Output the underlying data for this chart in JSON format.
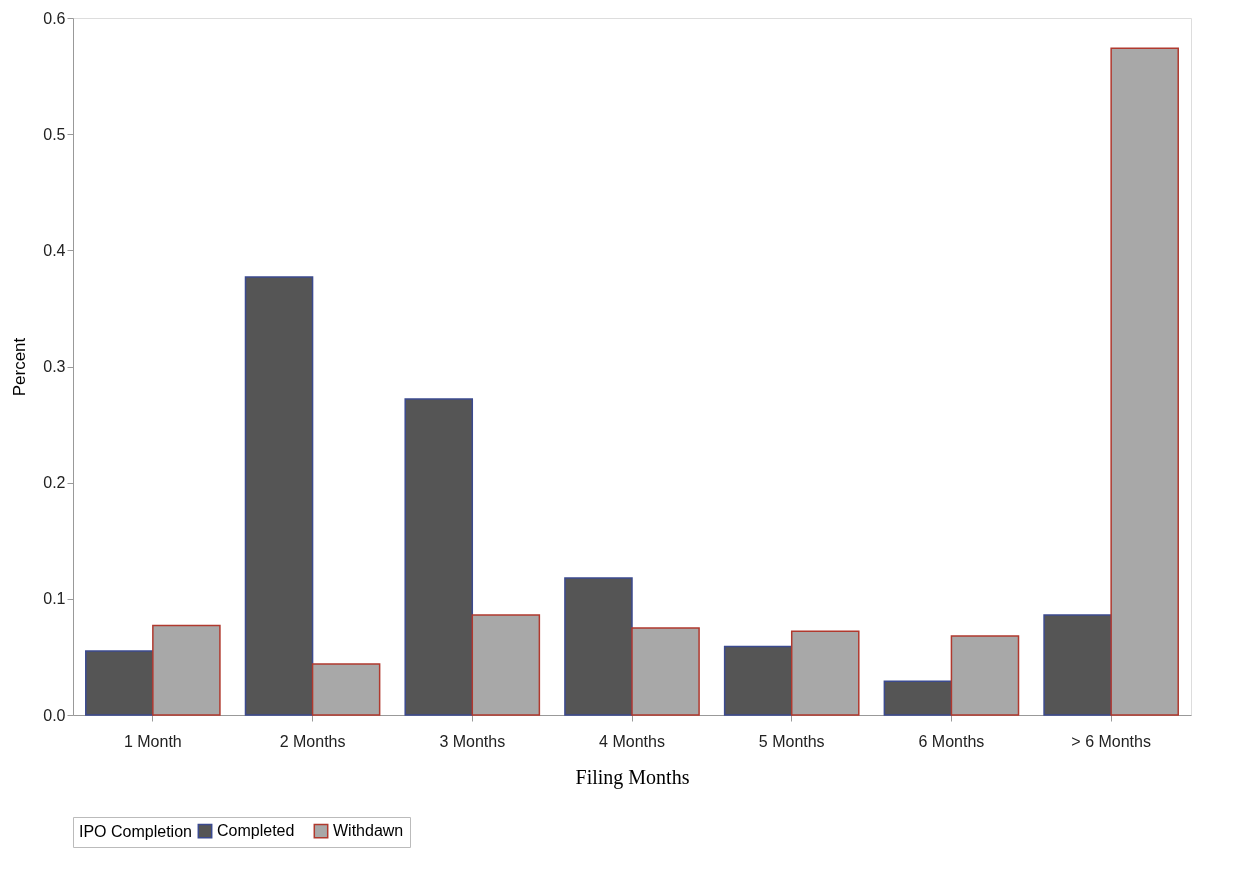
{
  "chart_data": {
    "type": "bar",
    "xlabel": "Filing Months",
    "ylabel": "Percent",
    "legend_title": "IPO Completion",
    "legend": "bottom",
    "grid": false,
    "categories": [
      "1 Month",
      "2 Months",
      "3 Months",
      "4 Months",
      "5 Months",
      "6 Months",
      "> 6 Months"
    ],
    "series": [
      {
        "name": "Completed",
        "color": "#555555",
        "values": [
          0.055,
          0.377,
          0.272,
          0.118,
          0.059,
          0.029,
          0.086
        ]
      },
      {
        "name": "Withdawn",
        "color": "#a8a8a8",
        "values": [
          0.077,
          0.044,
          0.086,
          0.075,
          0.072,
          0.068,
          0.574
        ]
      }
    ],
    "ylim": [
      0,
      0.6
    ],
    "yticks": [
      {
        "value": 0,
        "label": "0.0"
      },
      0.1,
      0.2,
      0.3,
      0.4,
      0.5,
      0.6
    ]
  }
}
